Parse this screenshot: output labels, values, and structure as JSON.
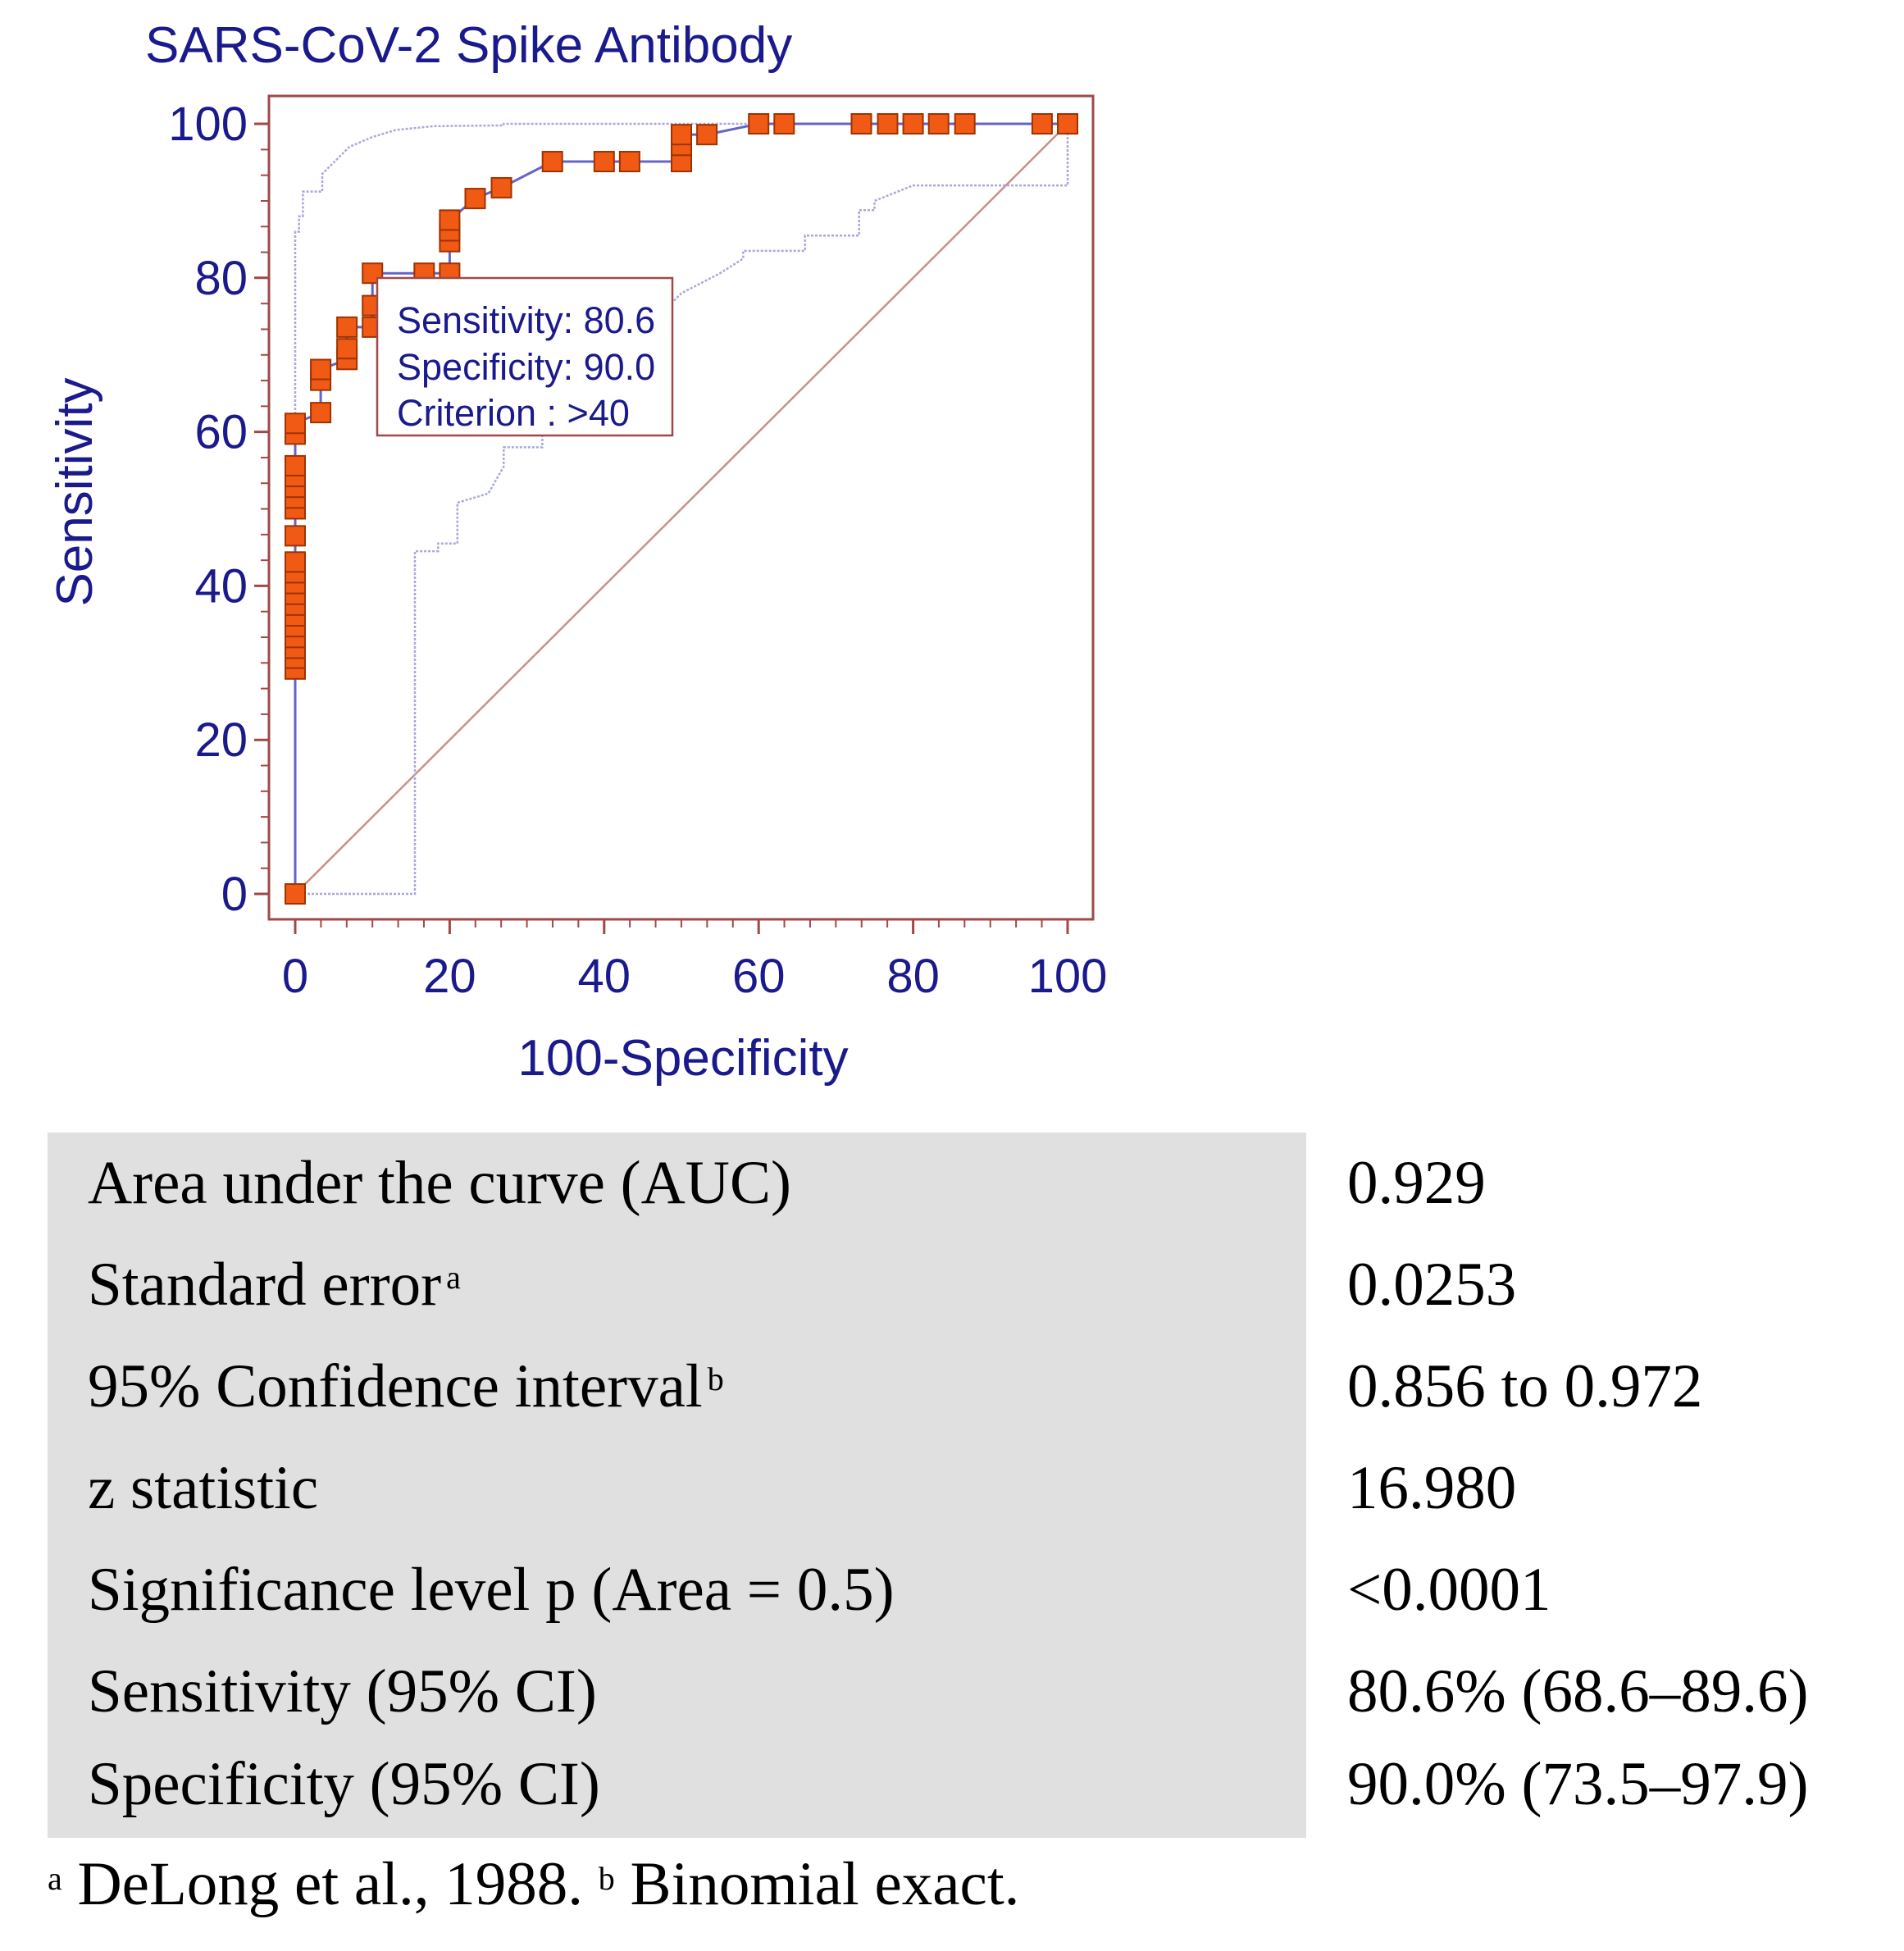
{
  "colors": {
    "axis_text": "#1a1a8c",
    "frame": "#a04848",
    "roc_line": "#6464c8",
    "ci_line": "#a8a8dc",
    "diagonal": "#c89088",
    "marker_fill": "#f05a14",
    "marker_stroke": "#a03200",
    "table_bg": "#e0e0e0"
  },
  "chart_data": {
    "type": "line",
    "title": "SARS-CoV-2 Spike Antibody",
    "xlabel": "100-Specificity",
    "ylabel": "Sensitivity",
    "xlim": [
      0,
      100
    ],
    "ylim": [
      0,
      100
    ],
    "x_ticks": [
      0,
      20,
      40,
      60,
      80,
      100
    ],
    "y_ticks": [
      0,
      20,
      40,
      60,
      80,
      100
    ],
    "x_minor_step": 3.333,
    "y_minor_step": 3.333,
    "grid": false,
    "series": [
      {
        "name": "ROC curve",
        "kind": "step-with-markers",
        "points": [
          [
            0,
            0
          ],
          [
            0,
            29.2
          ],
          [
            0,
            30.6
          ],
          [
            0,
            31.9
          ],
          [
            0,
            33.3
          ],
          [
            0,
            34.7
          ],
          [
            0,
            36.1
          ],
          [
            0,
            37.5
          ],
          [
            0,
            38.9
          ],
          [
            0,
            40.3
          ],
          [
            0,
            41.7
          ],
          [
            0,
            43.1
          ],
          [
            0,
            46.5
          ],
          [
            0,
            50.0
          ],
          [
            0,
            51.4
          ],
          [
            0,
            52.8
          ],
          [
            0,
            54.2
          ],
          [
            0,
            55.6
          ],
          [
            0,
            59.7
          ],
          [
            0,
            61.1
          ],
          [
            3.3,
            62.5
          ],
          [
            3.3,
            66.7
          ],
          [
            3.3,
            68.1
          ],
          [
            6.7,
            69.4
          ],
          [
            6.7,
            70.8
          ],
          [
            6.7,
            73.6
          ],
          [
            10.0,
            73.6
          ],
          [
            10.0,
            76.4
          ],
          [
            10.0,
            80.6
          ],
          [
            16.7,
            80.6
          ],
          [
            20.0,
            80.6
          ],
          [
            20.0,
            84.7
          ],
          [
            20.0,
            86.1
          ],
          [
            20.0,
            87.5
          ],
          [
            23.3,
            90.3
          ],
          [
            26.7,
            91.7
          ],
          [
            33.3,
            95.1
          ],
          [
            40.0,
            95.1
          ],
          [
            43.3,
            95.1
          ],
          [
            50.0,
            95.1
          ],
          [
            50.0,
            97.2
          ],
          [
            50.0,
            98.6
          ],
          [
            53.3,
            98.6
          ],
          [
            60.0,
            100
          ],
          [
            63.3,
            100
          ],
          [
            73.3,
            100
          ],
          [
            76.7,
            100
          ],
          [
            80.0,
            100
          ],
          [
            83.3,
            100
          ],
          [
            86.7,
            100
          ],
          [
            96.7,
            100
          ],
          [
            100,
            100
          ]
        ]
      },
      {
        "name": "95% CI upper",
        "kind": "dotted",
        "points": [
          [
            0,
            0
          ],
          [
            0,
            86
          ],
          [
            0.5,
            86
          ],
          [
            0.5,
            88
          ],
          [
            1,
            88
          ],
          [
            1,
            91.2
          ],
          [
            3.5,
            91.2
          ],
          [
            3.5,
            93.5
          ],
          [
            5,
            95
          ],
          [
            7,
            97
          ],
          [
            10,
            98.3
          ],
          [
            13,
            99.2
          ],
          [
            18,
            99.7
          ],
          [
            27,
            99.8
          ],
          [
            27,
            100
          ],
          [
            100,
            100
          ]
        ]
      },
      {
        "name": "95% CI lower",
        "kind": "dotted",
        "points": [
          [
            0,
            0
          ],
          [
            15.5,
            0
          ],
          [
            15.5,
            44.5
          ],
          [
            18.5,
            44.5
          ],
          [
            18.5,
            45.5
          ],
          [
            21,
            45.5
          ],
          [
            21,
            50.8
          ],
          [
            25,
            52
          ],
          [
            27,
            55.5
          ],
          [
            27,
            58
          ],
          [
            32,
            58
          ],
          [
            32,
            60.5
          ],
          [
            36,
            64
          ],
          [
            40,
            67.2
          ],
          [
            45,
            73
          ],
          [
            50,
            78
          ],
          [
            55,
            80.6
          ],
          [
            58,
            82.5
          ],
          [
            58,
            83.5
          ],
          [
            66,
            83.5
          ],
          [
            66,
            85.5
          ],
          [
            73,
            85.5
          ],
          [
            73,
            88.8
          ],
          [
            75,
            88.8
          ],
          [
            75,
            90
          ],
          [
            80,
            92
          ],
          [
            96,
            92
          ],
          [
            100,
            92
          ],
          [
            100,
            100
          ]
        ]
      },
      {
        "name": "Reference line",
        "kind": "solid",
        "points": [
          [
            0,
            0
          ],
          [
            100,
            100
          ]
        ]
      }
    ],
    "annotation": {
      "sensitivity_label": "Sensitivity: 80.6",
      "specificity_label": "Specificity: 90.0",
      "criterion_label": "Criterion : >40"
    }
  },
  "stats": {
    "rows": [
      {
        "label": "Area under the curve (AUC)",
        "note": "",
        "value": "0.929"
      },
      {
        "label": "Standard error",
        "note": "a",
        "value": "0.0253"
      },
      {
        "label": "95% Confidence interval",
        "note": "b",
        "value": "0.856 to 0.972"
      },
      {
        "label": "z statistic",
        "note": "",
        "value": "16.980"
      },
      {
        "label": "Significance level p (Area = 0.5)",
        "note": "",
        "value": "<0.0001"
      },
      {
        "label": "Sensitivity (95% CI)",
        "note": "",
        "value": "80.6% (68.6–89.6)"
      },
      {
        "label": "Specificity (95% CI)",
        "note": "",
        "value": "90.0% (73.5–97.9)"
      }
    ]
  },
  "footnote": {
    "mark_a": "a",
    "text_a": " DeLong et al., 1988. ",
    "mark_b": "b",
    "text_b": " Binomial exact."
  }
}
